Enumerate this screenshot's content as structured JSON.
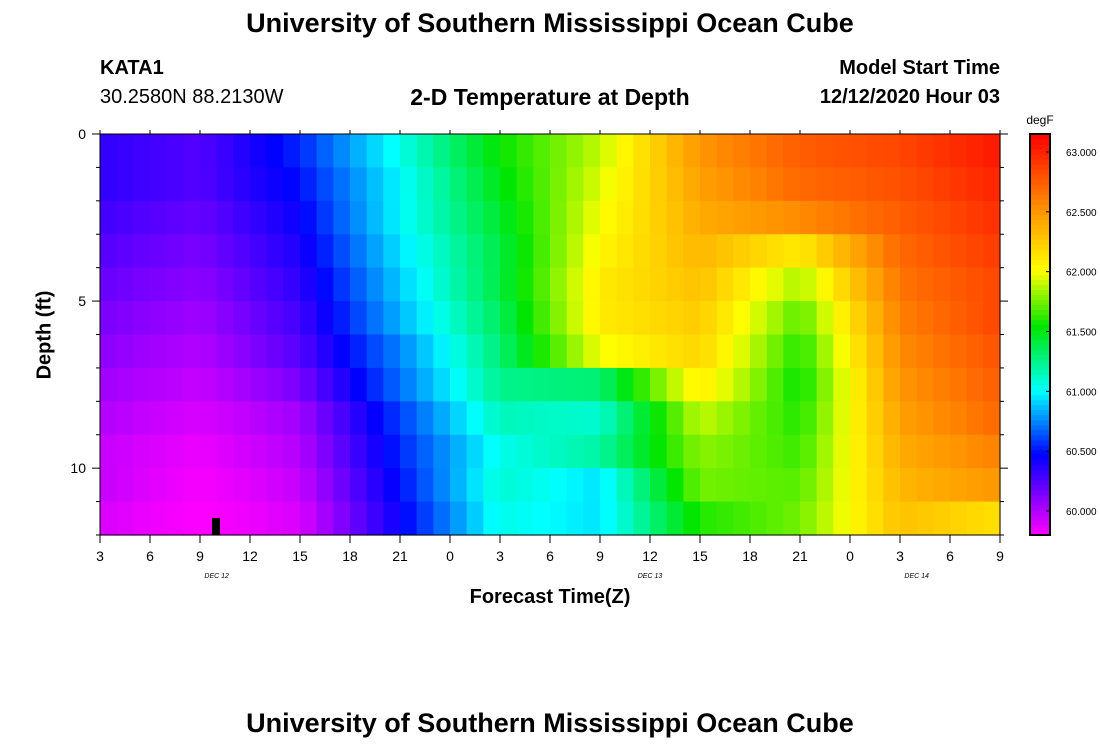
{
  "header": {
    "title": "University of Southern Mississippi Ocean Cube",
    "station": "KATA1",
    "coords": "30.2580N 88.2130W",
    "chart_title": "2-D Temperature at Depth",
    "model_start_label": "Model Start Time",
    "model_start_value": "12/12/2020 Hour 03"
  },
  "footer": {
    "title": "University of Southern Mississippi Ocean Cube"
  },
  "chart_data": {
    "type": "heatmap",
    "title": "2-D Temperature at Depth",
    "xlabel": "Forecast Time(Z)",
    "ylabel": "Depth (ft)",
    "x_tick_labels": [
      "3",
      "6",
      "9",
      "12",
      "15",
      "18",
      "21",
      "0",
      "3",
      "6",
      "9",
      "12",
      "15",
      "18",
      "21",
      "0",
      "3",
      "6",
      "9"
    ],
    "x_hours": [
      3,
      6,
      9,
      12,
      15,
      18,
      21,
      24,
      27,
      30,
      33,
      36,
      39,
      42,
      45,
      48,
      51,
      54,
      57
    ],
    "date_labels": [
      {
        "text": "DEC 12",
        "hour": 10
      },
      {
        "text": "DEC 13",
        "hour": 36
      },
      {
        "text": "DEC 14",
        "hour": 52
      }
    ],
    "y_tick_labels": [
      "0",
      "5",
      "10"
    ],
    "y_ticks": [
      0,
      5,
      10
    ],
    "ylim": [
      0,
      12
    ],
    "xlim_hours": [
      3,
      57
    ],
    "colorbar": {
      "unit": "degF",
      "labels": [
        "63.000",
        "62.500",
        "62.000",
        "61.500",
        "61.000",
        "60.500",
        "60.000"
      ],
      "values": [
        63.0,
        62.5,
        62.0,
        61.5,
        61.0,
        60.5,
        60.0
      ],
      "range": [
        59.8,
        63.15
      ]
    },
    "depth_rows": [
      0.5,
      1.5,
      2.5,
      3.5,
      4.5,
      5.5,
      6.5,
      7.5,
      8.5,
      9.5,
      10.5,
      11.5
    ],
    "time_hours": [
      3,
      9,
      15,
      21,
      27,
      33,
      39,
      45,
      51,
      57
    ],
    "temperature": [
      [
        60.35,
        60.25,
        60.55,
        61.05,
        61.55,
        61.9,
        62.5,
        62.75,
        62.85,
        63.05
      ],
      [
        60.35,
        60.25,
        60.5,
        61.0,
        61.5,
        61.95,
        62.45,
        62.7,
        62.8,
        63.0
      ],
      [
        60.3,
        60.2,
        60.45,
        61.0,
        61.45,
        62.0,
        62.4,
        62.55,
        62.75,
        62.95
      ],
      [
        60.25,
        60.15,
        60.4,
        60.95,
        61.4,
        62.05,
        62.35,
        62.1,
        62.7,
        62.9
      ],
      [
        60.2,
        60.1,
        60.35,
        60.9,
        61.4,
        62.1,
        62.3,
        61.85,
        62.65,
        62.85
      ],
      [
        60.15,
        60.05,
        60.3,
        60.85,
        61.35,
        62.1,
        62.25,
        61.7,
        62.6,
        62.85
      ],
      [
        60.1,
        60.0,
        60.25,
        60.75,
        61.3,
        62.0,
        62.2,
        61.6,
        62.55,
        62.8
      ],
      [
        60.05,
        59.95,
        60.15,
        60.7,
        61.25,
        61.3,
        62.1,
        61.55,
        62.5,
        62.75
      ],
      [
        60.0,
        59.9,
        60.05,
        60.6,
        61.15,
        61.1,
        61.9,
        61.6,
        62.45,
        62.7
      ],
      [
        59.95,
        59.85,
        60.0,
        60.55,
        61.05,
        61.2,
        61.8,
        61.65,
        62.4,
        62.6
      ],
      [
        59.95,
        59.82,
        59.95,
        60.5,
        61.1,
        60.95,
        61.75,
        61.7,
        62.35,
        62.5
      ],
      [
        59.9,
        59.8,
        59.9,
        60.45,
        61.05,
        60.95,
        61.6,
        61.75,
        62.3,
        62.15
      ]
    ]
  }
}
